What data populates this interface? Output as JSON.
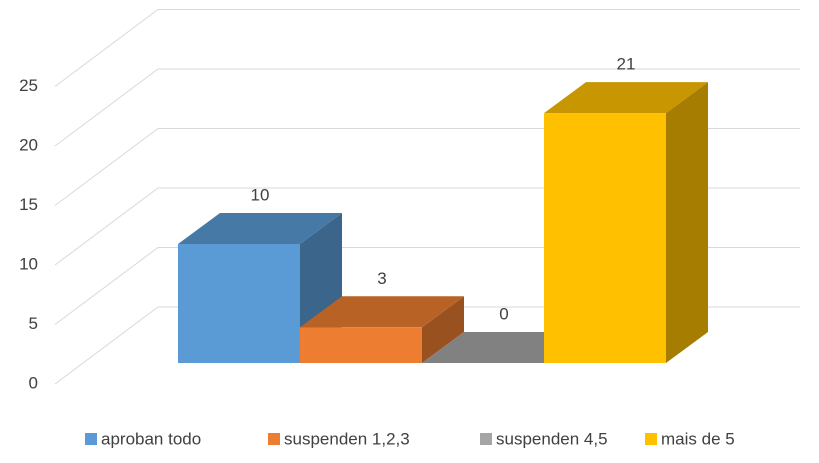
{
  "chart_data": {
    "type": "bar3d",
    "categories": [
      null
    ],
    "series": [
      {
        "name": "aproban todo",
        "color": "#5b9bd5",
        "values": [
          10
        ]
      },
      {
        "name": "suspenden 1,2,3",
        "color": "#ed7d31",
        "values": [
          3
        ]
      },
      {
        "name": "suspenden 4,5",
        "color": "#a5a5a5",
        "values": [
          0
        ]
      },
      {
        "name": "mais de 5",
        "color": "#ffc000",
        "values": [
          21
        ]
      }
    ],
    "ylim": [
      0,
      25
    ],
    "yticks": [
      0,
      5,
      10,
      15,
      20,
      25
    ],
    "grid": true,
    "legend": "bottom"
  }
}
